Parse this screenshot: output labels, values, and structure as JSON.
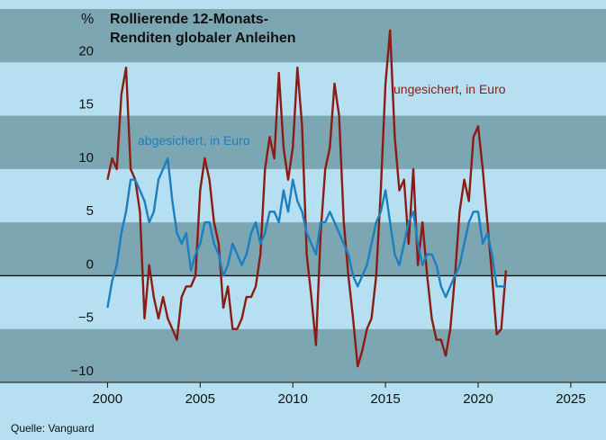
{
  "chart_data": {
    "type": "line",
    "unit_label": "%",
    "title": [
      "Rollierende 12-Monats-",
      "Renditen globaler Anleihen"
    ],
    "source": "Quelle: Vanguard",
    "x": [
      2000,
      2000.25,
      2000.5,
      2000.75,
      2001,
      2001.25,
      2001.5,
      2001.75,
      2002,
      2002.25,
      2002.5,
      2002.75,
      2003,
      2003.25,
      2003.5,
      2003.75,
      2004,
      2004.25,
      2004.5,
      2004.75,
      2005,
      2005.25,
      2005.5,
      2005.75,
      2006,
      2006.25,
      2006.5,
      2006.75,
      2007,
      2007.25,
      2007.5,
      2007.75,
      2008,
      2008.25,
      2008.5,
      2008.75,
      2009,
      2009.25,
      2009.5,
      2009.75,
      2010,
      2010.25,
      2010.5,
      2010.75,
      2011,
      2011.25,
      2011.5,
      2011.75,
      2012,
      2012.25,
      2012.5,
      2012.75,
      2013,
      2013.25,
      2013.5,
      2013.75,
      2014,
      2014.25,
      2014.5,
      2014.75,
      2015,
      2015.25,
      2015.5,
      2015.75,
      2016,
      2016.25,
      2016.5,
      2016.75,
      2017,
      2017.25,
      2017.5,
      2017.75,
      2018,
      2018.25,
      2018.5,
      2018.75,
      2019,
      2019.25,
      2019.5,
      2019.75,
      2020,
      2020.25,
      2020.5,
      2020.75,
      2021,
      2021.25,
      2021.5
    ],
    "series": [
      {
        "name": "ungesichert, in Euro",
        "color": "#8b1c14",
        "values": [
          9,
          11,
          10,
          17,
          19.5,
          10,
          9,
          6,
          -4,
          1,
          -2,
          -4,
          -2,
          -4,
          -5,
          -6,
          -2,
          -1,
          -1,
          0,
          8,
          11,
          9,
          5,
          3,
          -3,
          -1,
          -5,
          -5,
          -4,
          -2,
          -2,
          -1,
          2,
          10,
          13,
          11,
          19,
          12,
          9,
          12,
          19.5,
          14,
          2,
          -2,
          -6.5,
          4,
          10,
          12,
          18,
          15,
          5,
          0,
          -4,
          -8.5,
          -7,
          -5,
          -4,
          0,
          8,
          18,
          23,
          13,
          8,
          9,
          3,
          10,
          1,
          5,
          0,
          -4,
          -6,
          -6,
          -7.5,
          -5,
          0,
          6,
          9,
          7,
          13,
          14,
          10,
          5,
          0,
          -5.5,
          -5,
          0.5
        ]
      },
      {
        "name": "abgesichert, in Euro",
        "color": "#1c7fc0",
        "values": [
          -3,
          -0.5,
          1,
          4,
          6,
          9,
          9,
          8,
          7,
          5,
          6,
          9,
          10,
          11,
          7,
          4,
          3,
          4,
          0.5,
          2,
          3,
          5,
          5,
          3,
          2,
          0,
          1,
          3,
          2,
          1,
          2,
          4,
          5,
          3,
          4,
          6,
          6,
          5,
          8,
          6,
          9,
          7,
          6,
          4,
          3,
          2,
          5,
          5,
          6,
          5,
          4,
          3,
          2,
          0,
          -1,
          0,
          1,
          3,
          5,
          6,
          8,
          5,
          2,
          1,
          3,
          5,
          6,
          3,
          1,
          2,
          2,
          1,
          -1,
          -2,
          -1,
          0,
          1,
          3,
          5,
          6,
          6,
          3,
          4,
          2,
          -1,
          -1,
          -1
        ]
      }
    ],
    "xlim": [
      1994.2,
      2026.9
    ],
    "xticks": [
      2000,
      2005,
      2010,
      2015,
      2020,
      2025
    ],
    "ylim": [
      -10,
      25
    ],
    "yticks": [
      {
        "value": -10,
        "label": "−10"
      },
      {
        "value": -5,
        "label": "−5"
      },
      0,
      5,
      10,
      15,
      20
    ]
  }
}
